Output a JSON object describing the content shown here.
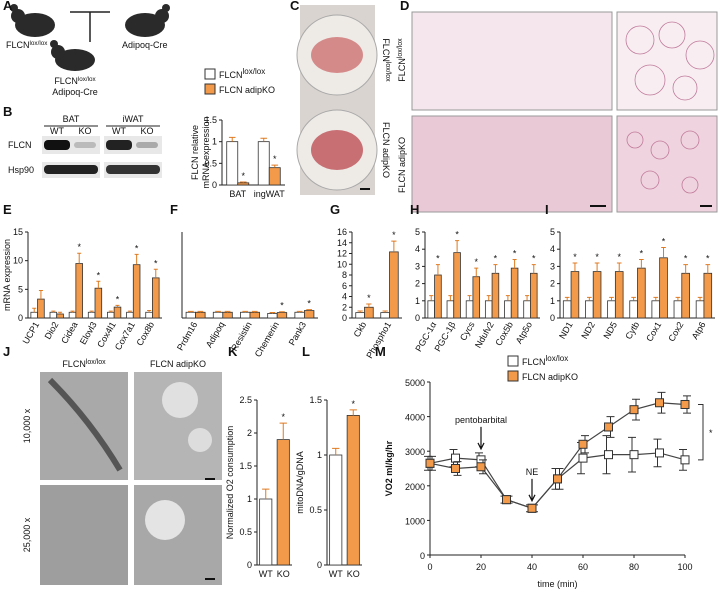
{
  "panel_labels": [
    "A",
    "B",
    "C",
    "D",
    "E",
    "F",
    "G",
    "H",
    "I",
    "J",
    "K",
    "L",
    "M"
  ],
  "panel_a": {
    "mouse_1": {
      "text": "FLCN",
      "sup": "lox/lox"
    },
    "mouse_2": "Adipoq-Cre",
    "offspring": [
      {
        "text": "FLCN",
        "sup": "lox/lox"
      },
      "Adipoq-Cre"
    ]
  },
  "panel_b_blot": {
    "tissues": [
      "BAT",
      "iWAT"
    ],
    "lanes": [
      "WT",
      "KO",
      "WT",
      "KO"
    ],
    "rows": [
      "FLCN",
      "Hsp90"
    ]
  },
  "panel_c": {
    "rows": [
      {
        "text": "FLCN",
        "sup": "lox/lox"
      },
      "FLCN adipKO"
    ]
  },
  "panel_d": {
    "rows": [
      {
        "text": "FLCN",
        "sup": "lox/lox"
      },
      "FLCN adipKO"
    ]
  },
  "panel_j": {
    "columns": [
      {
        "text": "FLCN",
        "sup": "lox/lox"
      },
      "FLCN adipKO"
    ],
    "rows": [
      "10,000 x",
      "25,000 x"
    ]
  },
  "chart_data": [
    {
      "type": "bar",
      "ylabel": [
        "FLCN relative",
        "mRNA expression"
      ],
      "categories": [
        "BAT",
        "ingWAT"
      ],
      "ylim": [
        0,
        1.5
      ],
      "yticks": [
        0,
        0.5,
        1,
        1.5
      ],
      "series": [
        {
          "name": "FLCN",
          "name_sup": "lox/lox",
          "color": "#ffffff",
          "values": [
            1,
            1
          ],
          "errors": [
            0.1,
            0.08
          ]
        },
        {
          "name": "FLCN adipKO",
          "color": "#f39a4a",
          "values": [
            0.05,
            0.4
          ],
          "errors": [
            0.02,
            0.06
          ]
        }
      ],
      "annotations": [
        {
          "text": "*",
          "category": "BAT"
        },
        {
          "text": "*",
          "category": "ingWAT"
        }
      ]
    },
    {
      "type": "bar",
      "ylabel": [
        "mRNA expression"
      ],
      "categories": [
        "UCP1",
        "Dio2",
        "Cidea",
        "Elovl3",
        "Cox4l1",
        "Cox7a1",
        "Cox8b"
      ],
      "ylim": [
        0,
        15
      ],
      "yticks": [
        0,
        5,
        10,
        15
      ],
      "series": [
        {
          "color": "#ffffff",
          "values": [
            1,
            1,
            1,
            1,
            1,
            1,
            1
          ],
          "errors": [
            0.7,
            0.2,
            0.2,
            0.2,
            0.2,
            0.2,
            0.3
          ]
        },
        {
          "color": "#f39a4a",
          "values": [
            3.3,
            0.7,
            9.5,
            5.2,
            1.9,
            9.3,
            7
          ],
          "errors": [
            1.5,
            0.3,
            1.8,
            1.2,
            0.3,
            1.8,
            1.5
          ]
        }
      ],
      "annotations": [
        {
          "text": "*",
          "category": "Cidea"
        },
        {
          "text": "*",
          "category": "Elovl3"
        },
        {
          "text": "*",
          "category": "Cox4l1"
        },
        {
          "text": "*",
          "category": "Cox7a1"
        },
        {
          "text": "*",
          "category": "Cox8b"
        }
      ]
    },
    {
      "type": "bar",
      "categories": [
        "Prdm16",
        "Adipoq",
        "Resistin",
        "Chemerin",
        "Pank3"
      ],
      "ylim": [
        0,
        15
      ],
      "series": [
        {
          "color": "#ffffff",
          "values": [
            1,
            1,
            1,
            0.8,
            1
          ],
          "errors": [
            0.15,
            0.15,
            0.15,
            0.15,
            0.15
          ]
        },
        {
          "color": "#f39a4a",
          "values": [
            1,
            1,
            1,
            0.95,
            1.3
          ],
          "errors": [
            0.15,
            0.15,
            0.15,
            0.15,
            0.15
          ]
        }
      ],
      "annotations": [
        {
          "text": "*",
          "category": "Chemerin"
        },
        {
          "text": "*",
          "category": "Pank3"
        }
      ]
    },
    {
      "type": "bar",
      "categories": [
        "Ckb",
        "Phospho1"
      ],
      "ylim": [
        0,
        16
      ],
      "yticks": [
        0,
        2,
        4,
        6,
        8,
        10,
        12,
        14,
        16
      ],
      "series": [
        {
          "color": "#ffffff",
          "values": [
            1,
            1
          ],
          "errors": [
            0.3,
            0.3
          ]
        },
        {
          "color": "#f39a4a",
          "values": [
            2,
            12.3
          ],
          "errors": [
            0.6,
            2
          ]
        }
      ],
      "annotations": [
        {
          "text": "*",
          "category": "Ckb"
        },
        {
          "text": "*",
          "category": "Phospho1"
        }
      ]
    },
    {
      "type": "bar",
      "categories": [
        "PGC-1α",
        "PGC-1β",
        "Cycs",
        "Ndufv2",
        "Cox5b",
        "Atp5o"
      ],
      "ylim": [
        0,
        5
      ],
      "yticks": [
        0,
        1,
        2,
        3,
        4,
        5
      ],
      "series": [
        {
          "color": "#ffffff",
          "values": [
            1,
            1,
            1,
            1,
            1,
            1
          ],
          "errors": [
            0.3,
            0.3,
            0.3,
            0.3,
            0.3,
            0.3
          ]
        },
        {
          "color": "#f39a4a",
          "values": [
            2.5,
            3.8,
            2.4,
            2.6,
            2.9,
            2.6
          ],
          "errors": [
            0.6,
            0.7,
            0.5,
            0.5,
            0.5,
            0.5
          ]
        }
      ],
      "annotations": [
        {
          "text": "*",
          "category": "PGC-1α"
        },
        {
          "text": "*",
          "category": "PGC-1β"
        },
        {
          "text": "*",
          "category": "Cycs"
        },
        {
          "text": "*",
          "category": "Ndufv2"
        },
        {
          "text": "*",
          "category": "Cox5b"
        },
        {
          "text": "*",
          "category": "Atp5o"
        }
      ]
    },
    {
      "type": "bar",
      "categories": [
        "ND1",
        "ND2",
        "ND5",
        "Cytb",
        "Cox1",
        "Cox2",
        "Atp6"
      ],
      "ylim": [
        0,
        5
      ],
      "yticks": [
        0,
        1,
        2,
        3,
        4,
        5
      ],
      "series": [
        {
          "color": "#ffffff",
          "values": [
            1,
            1,
            1,
            1,
            1,
            1,
            1
          ],
          "errors": [
            0.2,
            0.2,
            0.2,
            0.2,
            0.2,
            0.2,
            0.2
          ]
        },
        {
          "color": "#f39a4a",
          "values": [
            2.7,
            2.7,
            2.7,
            2.9,
            3.5,
            2.6,
            2.6
          ],
          "errors": [
            0.5,
            0.5,
            0.5,
            0.5,
            0.6,
            0.5,
            0.5
          ]
        }
      ],
      "annotations": [
        {
          "text": "*",
          "category": "ND1"
        },
        {
          "text": "*",
          "category": "ND2"
        },
        {
          "text": "*",
          "category": "ND5"
        },
        {
          "text": "*",
          "category": "Cytb"
        },
        {
          "text": "*",
          "category": "Cox1"
        },
        {
          "text": "*",
          "category": "Cox2"
        },
        {
          "text": "*",
          "category": "Atp6"
        }
      ]
    },
    {
      "type": "bar",
      "ylabel": [
        "Normalized O2 consumption"
      ],
      "categories": [
        "WT",
        "KO"
      ],
      "ylim": [
        0,
        2.5
      ],
      "yticks": [
        0,
        0.5,
        1,
        1.5,
        2,
        2.5
      ],
      "series": [
        {
          "colors": [
            "#ffffff",
            "#f39a4a"
          ],
          "values": [
            1,
            1.9
          ],
          "errors": [
            0.15,
            0.25
          ]
        }
      ],
      "annotations": [
        {
          "text": "*",
          "category": "KO"
        }
      ]
    },
    {
      "type": "bar",
      "ylabel": [
        "mitoDNA/gDNA"
      ],
      "categories": [
        "WT",
        "KO"
      ],
      "ylim": [
        0,
        1.5
      ],
      "yticks": [
        0,
        0.5,
        1,
        1.5
      ],
      "series": [
        {
          "colors": [
            "#ffffff",
            "#f39a4a"
          ],
          "values": [
            1,
            1.36
          ],
          "errors": [
            0.06,
            0.05
          ]
        }
      ],
      "annotations": [
        {
          "text": "*",
          "category": "KO"
        }
      ]
    },
    {
      "type": "line",
      "xlabel": "time (min)",
      "ylabel": "VO2 ml/kg/hr",
      "x": [
        0,
        10,
        20,
        30,
        40,
        50,
        60,
        70,
        80,
        90,
        100
      ],
      "xlim": [
        0,
        100
      ],
      "xticks": [
        0,
        20,
        40,
        60,
        80,
        100
      ],
      "ylim": [
        0,
        5000
      ],
      "yticks": [
        0,
        1000,
        2000,
        3000,
        4000,
        5000
      ],
      "series": [
        {
          "name": "FLCN",
          "name_sup": "lox/lox",
          "color": "#ffffff",
          "values": [
            2650,
            2800,
            2750,
            1600,
            1350,
            2200,
            2800,
            2900,
            2900,
            2950,
            2750
          ],
          "errors": [
            200,
            250,
            200,
            100,
            100,
            300,
            450,
            550,
            500,
            400,
            300
          ]
        },
        {
          "name": "FLCN adipKO",
          "color": "#f39a4a",
          "values": [
            2650,
            2500,
            2550,
            1600,
            1350,
            2200,
            3200,
            3700,
            4200,
            4400,
            4350
          ],
          "errors": [
            200,
            200,
            200,
            100,
            100,
            300,
            250,
            300,
            300,
            300,
            250
          ]
        }
      ],
      "annotations": [
        {
          "text": "pentobarbital",
          "x": 20
        },
        {
          "text": "NE",
          "x": 40
        },
        {
          "text": "*"
        }
      ]
    }
  ]
}
